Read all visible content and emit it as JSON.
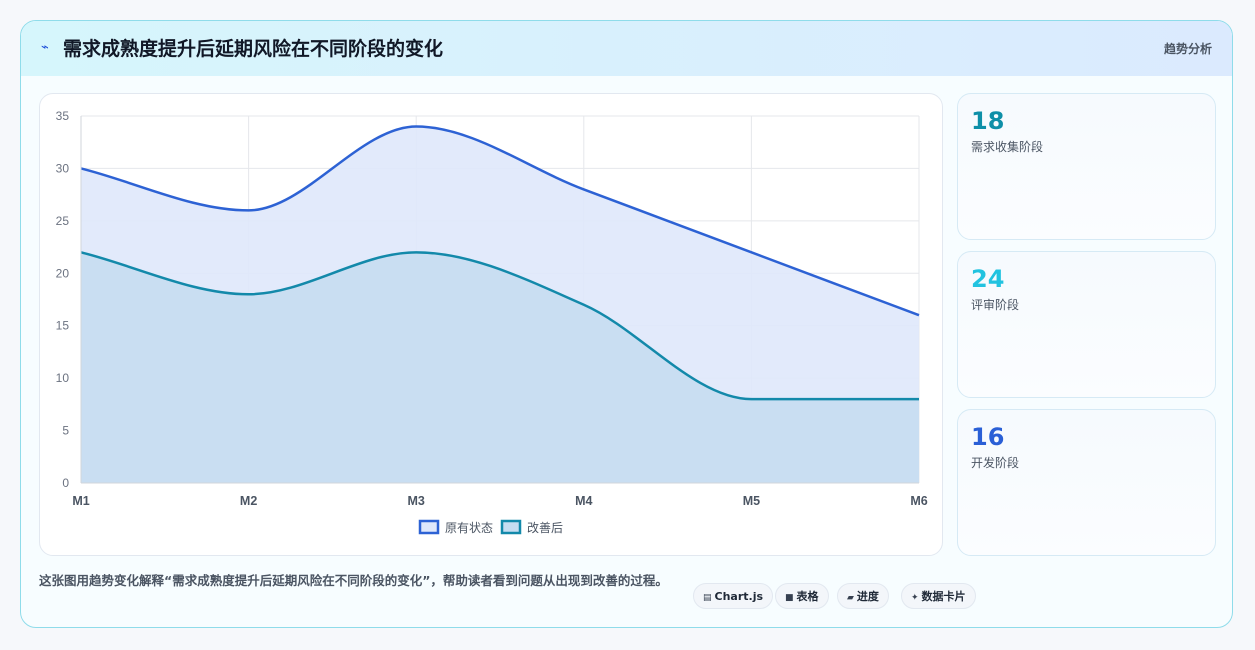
{
  "header": {
    "icon": "line-chart-icon",
    "title": "需求成熟度提升后延期风险在不同阶段的变化",
    "tag": "趋势分析"
  },
  "chart_data": {
    "type": "line",
    "categories": [
      "M1",
      "M2",
      "M3",
      "M4",
      "M5",
      "M6"
    ],
    "series": [
      {
        "name": "原有状态",
        "values": [
          30,
          26,
          34,
          28,
          22,
          16
        ],
        "color": "#2d62d4",
        "fill": "#dfe8fb"
      },
      {
        "name": "改善后",
        "values": [
          22,
          18,
          22,
          17,
          8,
          8
        ],
        "color": "#1389aa",
        "fill": "#c6ddf1"
      }
    ],
    "ylim": [
      0,
      35
    ],
    "yticks": [
      0,
      5,
      10,
      15,
      20,
      25,
      30,
      35
    ],
    "grid": true,
    "legend": "bottom",
    "smooth": true,
    "area_fill": true
  },
  "side_cards": [
    {
      "value": "18",
      "label": "需求收集阶段",
      "color": "#0e8fa8"
    },
    {
      "value": "24",
      "label": "评审阶段",
      "color": "#22c3e0"
    },
    {
      "value": "16",
      "label": "开发阶段",
      "color": "#2a5fd6"
    }
  ],
  "footnote": "这张图用趋势变化解释“需求成熟度提升后延期风险在不同阶段的变化”，帮助读者看到问题从出现到改善的过程。",
  "chips": [
    {
      "icon": "chart-icon",
      "glyph": "▤",
      "label": "Chart.js"
    },
    {
      "icon": "table-icon",
      "glyph": "■",
      "label": "表格"
    },
    {
      "icon": "progress-icon",
      "glyph": "▰",
      "label": "进度"
    },
    {
      "icon": "sparkle-icon",
      "glyph": "✦",
      "label": "数据卡片"
    }
  ]
}
